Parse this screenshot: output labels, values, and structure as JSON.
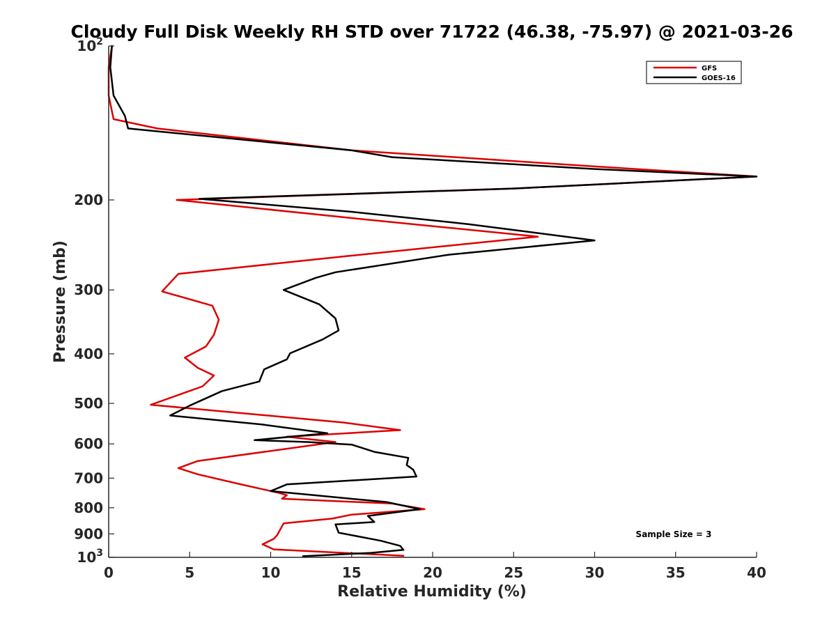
{
  "chart_data": {
    "type": "line",
    "title": "Cloudy Full Disk Weekly RH STD over 71722 (46.38, -75.97) @ 2021-03-26",
    "xlabel": "Relative Humidity (%)",
    "ylabel": "Pressure (mb)",
    "xlim": [
      0,
      40
    ],
    "ylim": [
      100,
      1000
    ],
    "yscale": "log",
    "yreversed": true,
    "x_ticks": [
      0,
      5,
      10,
      15,
      20,
      25,
      30,
      35,
      40
    ],
    "y_ticks": [
      {
        "value": 100,
        "base": "10",
        "exp": "2"
      },
      {
        "value": 200,
        "label": "200"
      },
      {
        "value": 300,
        "label": "300"
      },
      {
        "value": 400,
        "label": "400"
      },
      {
        "value": 500,
        "label": "500"
      },
      {
        "value": 600,
        "label": "600"
      },
      {
        "value": 700,
        "label": "700"
      },
      {
        "value": 800,
        "label": "800"
      },
      {
        "value": 900,
        "label": "900"
      },
      {
        "value": 1000,
        "base": "10",
        "exp": "3"
      }
    ],
    "legend_position": "top-right",
    "annotation": "Sample Size = 3",
    "series": [
      {
        "name": "GFS",
        "color": "#dd0000",
        "points": [
          [
            0.2,
            100
          ],
          [
            0.0,
            110
          ],
          [
            0.0,
            125
          ],
          [
            0.3,
            139
          ],
          [
            3.0,
            145
          ],
          [
            15.0,
            160
          ],
          [
            30.0,
            172
          ],
          [
            40.0,
            180
          ],
          [
            25.0,
            190
          ],
          [
            4.2,
            200
          ],
          [
            15.0,
            217
          ],
          [
            26.5,
            236
          ],
          [
            14.5,
            258
          ],
          [
            4.3,
            279
          ],
          [
            3.3,
            302
          ],
          [
            6.4,
            322
          ],
          [
            6.8,
            343
          ],
          [
            6.5,
            367
          ],
          [
            6.0,
            387
          ],
          [
            4.7,
            407
          ],
          [
            5.5,
            426
          ],
          [
            6.5,
            441
          ],
          [
            5.8,
            463
          ],
          [
            2.6,
            503
          ],
          [
            14.5,
            545
          ],
          [
            18.0,
            564
          ],
          [
            11.0,
            581
          ],
          [
            14.0,
            595
          ],
          [
            5.5,
            648
          ],
          [
            4.3,
            669
          ],
          [
            5.5,
            688
          ],
          [
            8.0,
            718
          ],
          [
            10.5,
            748
          ],
          [
            11.0,
            756
          ],
          [
            10.7,
            768
          ],
          [
            17.5,
            785
          ],
          [
            19.5,
            805
          ],
          [
            15.0,
            825
          ],
          [
            13.8,
            840
          ],
          [
            10.8,
            858
          ],
          [
            10.4,
            905
          ],
          [
            10.2,
            920
          ],
          [
            9.5,
            943
          ],
          [
            10.2,
            965
          ],
          [
            18.2,
            993
          ]
        ]
      },
      {
        "name": "GOES-16",
        "color": "#000000",
        "points": [
          [
            0.2,
            100
          ],
          [
            0.1,
            110
          ],
          [
            0.3,
            125
          ],
          [
            1.0,
            137
          ],
          [
            1.2,
            145
          ],
          [
            15.0,
            160
          ],
          [
            17.5,
            165
          ],
          [
            30.0,
            174
          ],
          [
            40.0,
            180
          ],
          [
            25.0,
            190
          ],
          [
            5.6,
            199
          ],
          [
            15.0,
            211
          ],
          [
            22.2,
            223
          ],
          [
            30.0,
            240
          ],
          [
            21.0,
            256
          ],
          [
            14.0,
            277
          ],
          [
            12.8,
            284
          ],
          [
            10.8,
            300
          ],
          [
            13.0,
            320
          ],
          [
            14.0,
            341
          ],
          [
            14.2,
            360
          ],
          [
            13.2,
            375
          ],
          [
            11.2,
            399
          ],
          [
            11.0,
            410
          ],
          [
            9.6,
            429
          ],
          [
            9.3,
            453
          ],
          [
            7.0,
            473
          ],
          [
            5.0,
            505
          ],
          [
            3.8,
            528
          ],
          [
            9.5,
            550
          ],
          [
            13.5,
            572
          ],
          [
            9.0,
            590
          ],
          [
            12.3,
            595
          ],
          [
            15.0,
            602
          ],
          [
            16.4,
            622
          ],
          [
            18.5,
            639
          ],
          [
            18.4,
            660
          ],
          [
            18.8,
            674
          ],
          [
            19.0,
            695
          ],
          [
            11.0,
            720
          ],
          [
            10.0,
            742
          ],
          [
            12.5,
            755
          ],
          [
            17.2,
            780
          ],
          [
            19.2,
            805
          ],
          [
            16.0,
            830
          ],
          [
            16.4,
            853
          ],
          [
            14.0,
            862
          ],
          [
            14.2,
            895
          ],
          [
            16.8,
            928
          ],
          [
            18.0,
            950
          ],
          [
            18.2,
            967
          ],
          [
            16.2,
            980
          ],
          [
            12.0,
            995
          ]
        ]
      }
    ]
  }
}
